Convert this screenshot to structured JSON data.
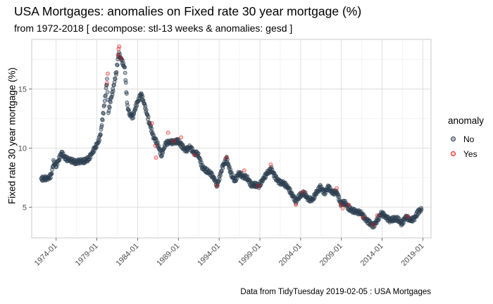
{
  "chart_data": {
    "type": "scatter",
    "title": "USA Mortgages: anomalies on Fixed rate 30 year mortgage (%)",
    "subtitle": "from 1972-2018 [ decompose: stl-13 weeks & anomalies: gesd ]",
    "xlabel": "",
    "ylabel": "Fixed rate 30 year mortgage (%)",
    "caption": "Data from TidyTuesday 2019-02-05 : USA Mortgages",
    "x_ticks": [
      "1974-01",
      "1979-01",
      "1984-01",
      "1989-01",
      "1994-01",
      "1999-01",
      "2004-01",
      "2009-01",
      "2014-01",
      "2019-01"
    ],
    "y_ticks": [
      5,
      10,
      15
    ],
    "xlim": [
      "1971-01",
      "2020-01"
    ],
    "ylim": [
      2.4,
      19.2
    ],
    "grid": true,
    "legend": {
      "title": "anomaly",
      "position": "right",
      "entries": [
        "No",
        "Yes"
      ]
    },
    "colors": {
      "No": "#2c3e50",
      "Yes": "#e31a1c"
    },
    "series": [
      {
        "name": "No",
        "x": [
          "1972-03",
          "1973-01",
          "1973-06",
          "1973-09",
          "1974-01",
          "1974-09",
          "1975-03",
          "1975-09",
          "1976-06",
          "1977-01",
          "1977-06",
          "1978-01",
          "1978-06",
          "1979-01",
          "1979-06",
          "1979-10",
          "1980-03",
          "1980-04",
          "1980-06",
          "1980-09",
          "1981-01",
          "1981-06",
          "1981-09",
          "1982-01",
          "1982-06",
          "1982-10",
          "1983-01",
          "1983-06",
          "1983-10",
          "1984-06",
          "1984-10",
          "1985-06",
          "1985-12",
          "1986-06",
          "1986-12",
          "1987-04",
          "1987-06",
          "1987-12",
          "1988-06",
          "1988-12",
          "1989-06",
          "1989-12",
          "1990-06",
          "1990-12",
          "1991-06",
          "1991-12",
          "1992-06",
          "1992-12",
          "1993-06",
          "1993-10",
          "1994-06",
          "1994-12",
          "1995-06",
          "1995-12",
          "1996-06",
          "1996-12",
          "1997-06",
          "1997-12",
          "1998-06",
          "1998-12",
          "1999-06",
          "1999-12",
          "2000-06",
          "2000-12",
          "2001-06",
          "2001-12",
          "2002-06",
          "2002-12",
          "2003-06",
          "2003-12",
          "2004-06",
          "2004-12",
          "2005-06",
          "2005-12",
          "2006-06",
          "2006-12",
          "2007-06",
          "2007-12",
          "2008-06",
          "2008-12",
          "2009-06",
          "2009-12",
          "2010-06",
          "2010-12",
          "2011-06",
          "2011-12",
          "2012-06",
          "2012-12",
          "2013-06",
          "2013-12",
          "2014-06",
          "2014-12",
          "2015-06",
          "2015-12",
          "2016-06",
          "2016-12",
          "2017-06",
          "2017-12",
          "2018-06",
          "2018-11"
        ],
        "y": [
          7.4,
          7.45,
          7.7,
          8.8,
          8.5,
          9.6,
          9.1,
          9.0,
          8.8,
          8.9,
          8.9,
          9.1,
          9.6,
          10.3,
          11.0,
          12.8,
          15.2,
          15.8,
          13.0,
          14.0,
          15.0,
          16.6,
          18.0,
          17.5,
          16.8,
          13.5,
          12.9,
          12.6,
          13.5,
          14.6,
          13.9,
          12.2,
          11.0,
          10.4,
          9.4,
          10.0,
          10.4,
          10.5,
          10.5,
          10.6,
          10.2,
          9.8,
          10.1,
          9.6,
          9.5,
          8.4,
          8.1,
          7.9,
          7.4,
          6.8,
          8.4,
          9.1,
          7.9,
          7.2,
          7.9,
          7.6,
          7.5,
          6.9,
          6.9,
          6.8,
          7.4,
          7.9,
          8.2,
          7.5,
          7.1,
          7.0,
          6.7,
          6.1,
          5.5,
          6.0,
          6.2,
          5.7,
          5.6,
          6.2,
          6.7,
          6.2,
          6.7,
          6.2,
          6.3,
          5.3,
          5.4,
          4.9,
          4.7,
          4.6,
          4.5,
          4.0,
          3.7,
          3.4,
          3.9,
          4.5,
          4.2,
          3.9,
          4.0,
          4.0,
          3.6,
          4.2,
          3.9,
          4.0,
          4.6,
          4.8
        ]
      },
      {
        "name": "Yes",
        "x": [
          "1980-04",
          "1980-05",
          "1981-08",
          "1981-09",
          "1981-10",
          "1982-01",
          "1985-10",
          "1986-03",
          "1986-04",
          "1987-10",
          "1988-06",
          "1989-05",
          "1991-01",
          "1993-10",
          "1994-12",
          "1997-02",
          "1998-11",
          "2000-05",
          "2003-06",
          "2004-05",
          "2008-06",
          "2008-12",
          "2009-03",
          "2009-12",
          "2011-09",
          "2012-12",
          "2013-06",
          "2017-03"
        ],
        "y": [
          15.5,
          16.3,
          17.9,
          18.4,
          18.6,
          17.6,
          12.1,
          10.2,
          9.2,
          11.3,
          10.6,
          10.9,
          9.4,
          6.8,
          9.2,
          8.1,
          6.8,
          8.6,
          5.2,
          6.3,
          6.6,
          5.2,
          4.9,
          5.2,
          4.1,
          3.5,
          4.3,
          4.2
        ]
      }
    ]
  }
}
